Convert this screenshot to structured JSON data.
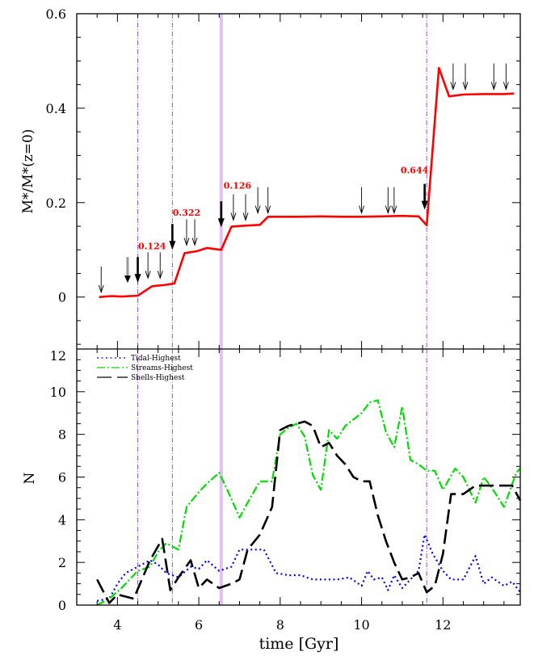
{
  "figure": {
    "top_panel": {
      "ylabel": "M*/M*(z=0)",
      "yticks": [
        "0",
        "0.2",
        "0.4",
        "0.6"
      ]
    },
    "bottom_panel": {
      "ylabel": "N",
      "yticks": [
        "0",
        "2",
        "4",
        "6",
        "8",
        "10",
        "12"
      ]
    },
    "xlabel": "time [Gyr]",
    "xticks": [
      "4",
      "6",
      "8",
      "10",
      "12"
    ]
  },
  "chart_data": [
    {
      "type": "line",
      "panel": "top",
      "xlabel": "time [Gyr]",
      "ylabel": "M*/M*(z=0)",
      "xlim": [
        3,
        13.9
      ],
      "ylim": [
        -0.11,
        0.6
      ],
      "color": "#ff0000",
      "x": [
        3.55,
        3.85,
        4.1,
        4.5,
        4.85,
        5.2,
        5.4,
        5.65,
        5.95,
        6.2,
        6.55,
        6.8,
        7.1,
        7.5,
        7.7,
        8.0,
        8.5,
        9.0,
        9.5,
        10.0,
        10.5,
        11.0,
        11.4,
        11.6,
        11.9,
        12.15,
        12.5,
        13.0,
        13.5,
        13.75
      ],
      "y": [
        0.0,
        0.002,
        0.001,
        0.003,
        0.023,
        0.026,
        0.029,
        0.093,
        0.097,
        0.104,
        0.1,
        0.149,
        0.151,
        0.153,
        0.17,
        0.17,
        0.17,
        0.171,
        0.17,
        0.17,
        0.171,
        0.172,
        0.171,
        0.152,
        0.485,
        0.425,
        0.429,
        0.43,
        0.43,
        0.431
      ],
      "vertical_lines": [
        {
          "x": 4.5,
          "color": "#a050d8"
        },
        {
          "x": 5.35,
          "color": "#a050d8"
        },
        {
          "x": 6.55,
          "color": "#e2c0f0"
        },
        {
          "x": 11.6,
          "color": "#a050d8"
        }
      ],
      "annotations": [
        {
          "text": "0.124",
          "x": 4.85,
          "y": 0.101
        },
        {
          "text": "0.322",
          "x": 5.7,
          "y": 0.172
        },
        {
          "text": "0.126",
          "x": 6.95,
          "y": 0.23
        },
        {
          "text": "0.644",
          "x": 11.3,
          "y": 0.262
        }
      ],
      "arrows": [
        {
          "x": 3.6,
          "tip": 0.01,
          "style": "thin"
        },
        {
          "x": 4.25,
          "tip": 0.03,
          "style": "grey"
        },
        {
          "x": 4.5,
          "tip": 0.03,
          "style": "bold"
        },
        {
          "x": 4.75,
          "tip": 0.04,
          "style": "thin"
        },
        {
          "x": 5.05,
          "tip": 0.04,
          "style": "thin"
        },
        {
          "x": 5.35,
          "tip": 0.1,
          "style": "bold"
        },
        {
          "x": 5.7,
          "tip": 0.11,
          "style": "thin"
        },
        {
          "x": 5.9,
          "tip": 0.11,
          "style": "thin"
        },
        {
          "x": 6.55,
          "tip": 0.148,
          "style": "bold"
        },
        {
          "x": 6.85,
          "tip": 0.163,
          "style": "thin"
        },
        {
          "x": 7.15,
          "tip": 0.163,
          "style": "thin"
        },
        {
          "x": 7.45,
          "tip": 0.178,
          "style": "thin"
        },
        {
          "x": 7.7,
          "tip": 0.178,
          "style": "thin"
        },
        {
          "x": 10.0,
          "tip": 0.178,
          "style": "thin"
        },
        {
          "x": 10.65,
          "tip": 0.178,
          "style": "thin"
        },
        {
          "x": 10.8,
          "tip": 0.178,
          "style": "thin"
        },
        {
          "x": 11.55,
          "tip": 0.185,
          "style": "bold"
        },
        {
          "x": 12.25,
          "tip": 0.44,
          "style": "thin"
        },
        {
          "x": 12.55,
          "tip": 0.44,
          "style": "thin"
        },
        {
          "x": 13.25,
          "tip": 0.44,
          "style": "thin"
        },
        {
          "x": 13.55,
          "tip": 0.44,
          "style": "thin"
        }
      ]
    },
    {
      "type": "line",
      "panel": "bottom",
      "xlabel": "time [Gyr]",
      "ylabel": "N",
      "xlim": [
        3,
        13.9
      ],
      "ylim": [
        0,
        12
      ],
      "legend_position": "top-left",
      "series": [
        {
          "name": "Tidal-Highest",
          "color": "#0000ff",
          "dash": "dotted",
          "x": [
            3.5,
            3.8,
            4.0,
            4.2,
            4.5,
            4.8,
            5.0,
            5.2,
            5.5,
            5.8,
            6.0,
            6.2,
            6.5,
            6.8,
            7.0,
            7.3,
            7.6,
            7.9,
            8.2,
            8.5,
            8.8,
            9.1,
            9.4,
            9.7,
            10.0,
            10.15,
            10.3,
            10.5,
            10.65,
            10.8,
            11.0,
            11.2,
            11.4,
            11.55,
            11.75,
            12.0,
            12.2,
            12.5,
            12.8,
            13.0,
            13.2,
            13.5,
            13.7,
            13.9
          ],
          "y": [
            0.2,
            0.3,
            1.0,
            1.5,
            1.8,
            2.1,
            1.9,
            1.5,
            1.3,
            1.8,
            1.7,
            2.1,
            1.6,
            1.8,
            2.6,
            2.6,
            2.6,
            1.5,
            1.4,
            1.4,
            1.2,
            1.2,
            1.2,
            1.3,
            0.9,
            1.6,
            1.2,
            1.3,
            0.7,
            1.4,
            0.8,
            1.2,
            1.6,
            3.3,
            2.4,
            1.6,
            1.2,
            1.2,
            2.3,
            1.0,
            1.3,
            0.9,
            1.1,
            0.6
          ]
        },
        {
          "name": "Streams-Highest",
          "color": "#00dd00",
          "dash": "dash-dot",
          "x": [
            3.5,
            3.8,
            4.1,
            4.5,
            4.8,
            5.0,
            5.2,
            5.5,
            5.7,
            6.0,
            6.2,
            6.5,
            6.7,
            7.0,
            7.2,
            7.5,
            7.8,
            8.0,
            8.2,
            8.4,
            8.6,
            8.8,
            9.0,
            9.2,
            9.4,
            9.6,
            9.8,
            10.0,
            10.2,
            10.4,
            10.6,
            10.8,
            11.0,
            11.2,
            11.4,
            11.6,
            11.8,
            12.0,
            12.3,
            12.5,
            12.8,
            13.0,
            13.2,
            13.5,
            13.8,
            13.9
          ],
          "y": [
            0.0,
            0.3,
            0.8,
            1.6,
            1.8,
            2.5,
            2.9,
            2.6,
            4.6,
            5.3,
            5.7,
            6.2,
            5.4,
            4.1,
            4.8,
            5.8,
            5.8,
            8.0,
            8.3,
            8.5,
            7.9,
            6.1,
            5.4,
            8.2,
            7.8,
            8.4,
            8.7,
            9.0,
            9.5,
            9.6,
            8.1,
            7.4,
            9.3,
            6.8,
            6.6,
            6.3,
            6.3,
            5.4,
            6.4,
            6.0,
            4.8,
            6.0,
            5.5,
            4.6,
            6.2,
            6.4
          ]
        },
        {
          "name": "Shells-Highest",
          "color": "#000000",
          "dash": "long-dash",
          "x": [
            3.5,
            3.8,
            4.0,
            4.4,
            4.8,
            5.1,
            5.3,
            5.5,
            5.8,
            6.0,
            6.2,
            6.5,
            6.8,
            7.0,
            7.2,
            7.5,
            7.8,
            8.0,
            8.2,
            8.4,
            8.6,
            8.8,
            9.0,
            9.2,
            9.4,
            9.6,
            9.8,
            10.0,
            10.2,
            10.4,
            10.6,
            10.8,
            11.0,
            11.2,
            11.4,
            11.6,
            11.8,
            12.0,
            12.2,
            12.5,
            12.8,
            13.0,
            13.3,
            13.5,
            13.7,
            13.9
          ],
          "y": [
            1.2,
            0.1,
            0.5,
            0.3,
            2.1,
            3.1,
            0.7,
            1.3,
            2.1,
            0.8,
            1.2,
            0.8,
            1.0,
            1.2,
            2.6,
            3.3,
            4.6,
            8.2,
            8.4,
            8.5,
            8.6,
            8.4,
            7.4,
            7.6,
            7.0,
            6.6,
            6.0,
            5.8,
            5.8,
            4.2,
            3.0,
            2.0,
            1.2,
            1.3,
            1.5,
            0.6,
            0.9,
            2.4,
            5.2,
            5.2,
            5.6,
            5.6,
            5.6,
            5.6,
            5.6,
            4.9
          ]
        }
      ]
    }
  ]
}
